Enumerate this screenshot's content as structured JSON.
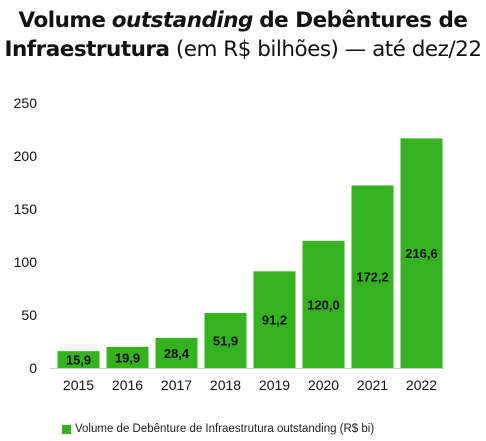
{
  "chart_data": {
    "type": "bar",
    "title_parts": {
      "line1_a": "Volume",
      "line1_b": "outstanding",
      "line1_c": "de Debêntures de",
      "line2_a": "Infraestrutura",
      "line2_b": "(em R$ bilhões) — até dez/22"
    },
    "categories": [
      "2015",
      "2016",
      "2017",
      "2018",
      "2019",
      "2020",
      "2021",
      "2022"
    ],
    "values": [
      15.9,
      19.9,
      28.4,
      51.9,
      91.2,
      120.0,
      172.2,
      216.6
    ],
    "value_labels": [
      "15,9",
      "19,9",
      "28,4",
      "51,9",
      "91,2",
      "120,0",
      "172,2",
      "216,6"
    ],
    "series": [
      {
        "name": "Volume de Debênture de Infraestrutura outstanding (R$ bi)",
        "values": [
          15.9,
          19.9,
          28.4,
          51.9,
          91.2,
          120.0,
          172.2,
          216.6
        ]
      }
    ],
    "ylim": [
      0,
      250
    ],
    "yticks": [
      0,
      50,
      100,
      150,
      200,
      250
    ],
    "grid": false,
    "legend_position": "bottom-left",
    "colors": {
      "bar": "#34b21f",
      "text": "#111111"
    }
  }
}
